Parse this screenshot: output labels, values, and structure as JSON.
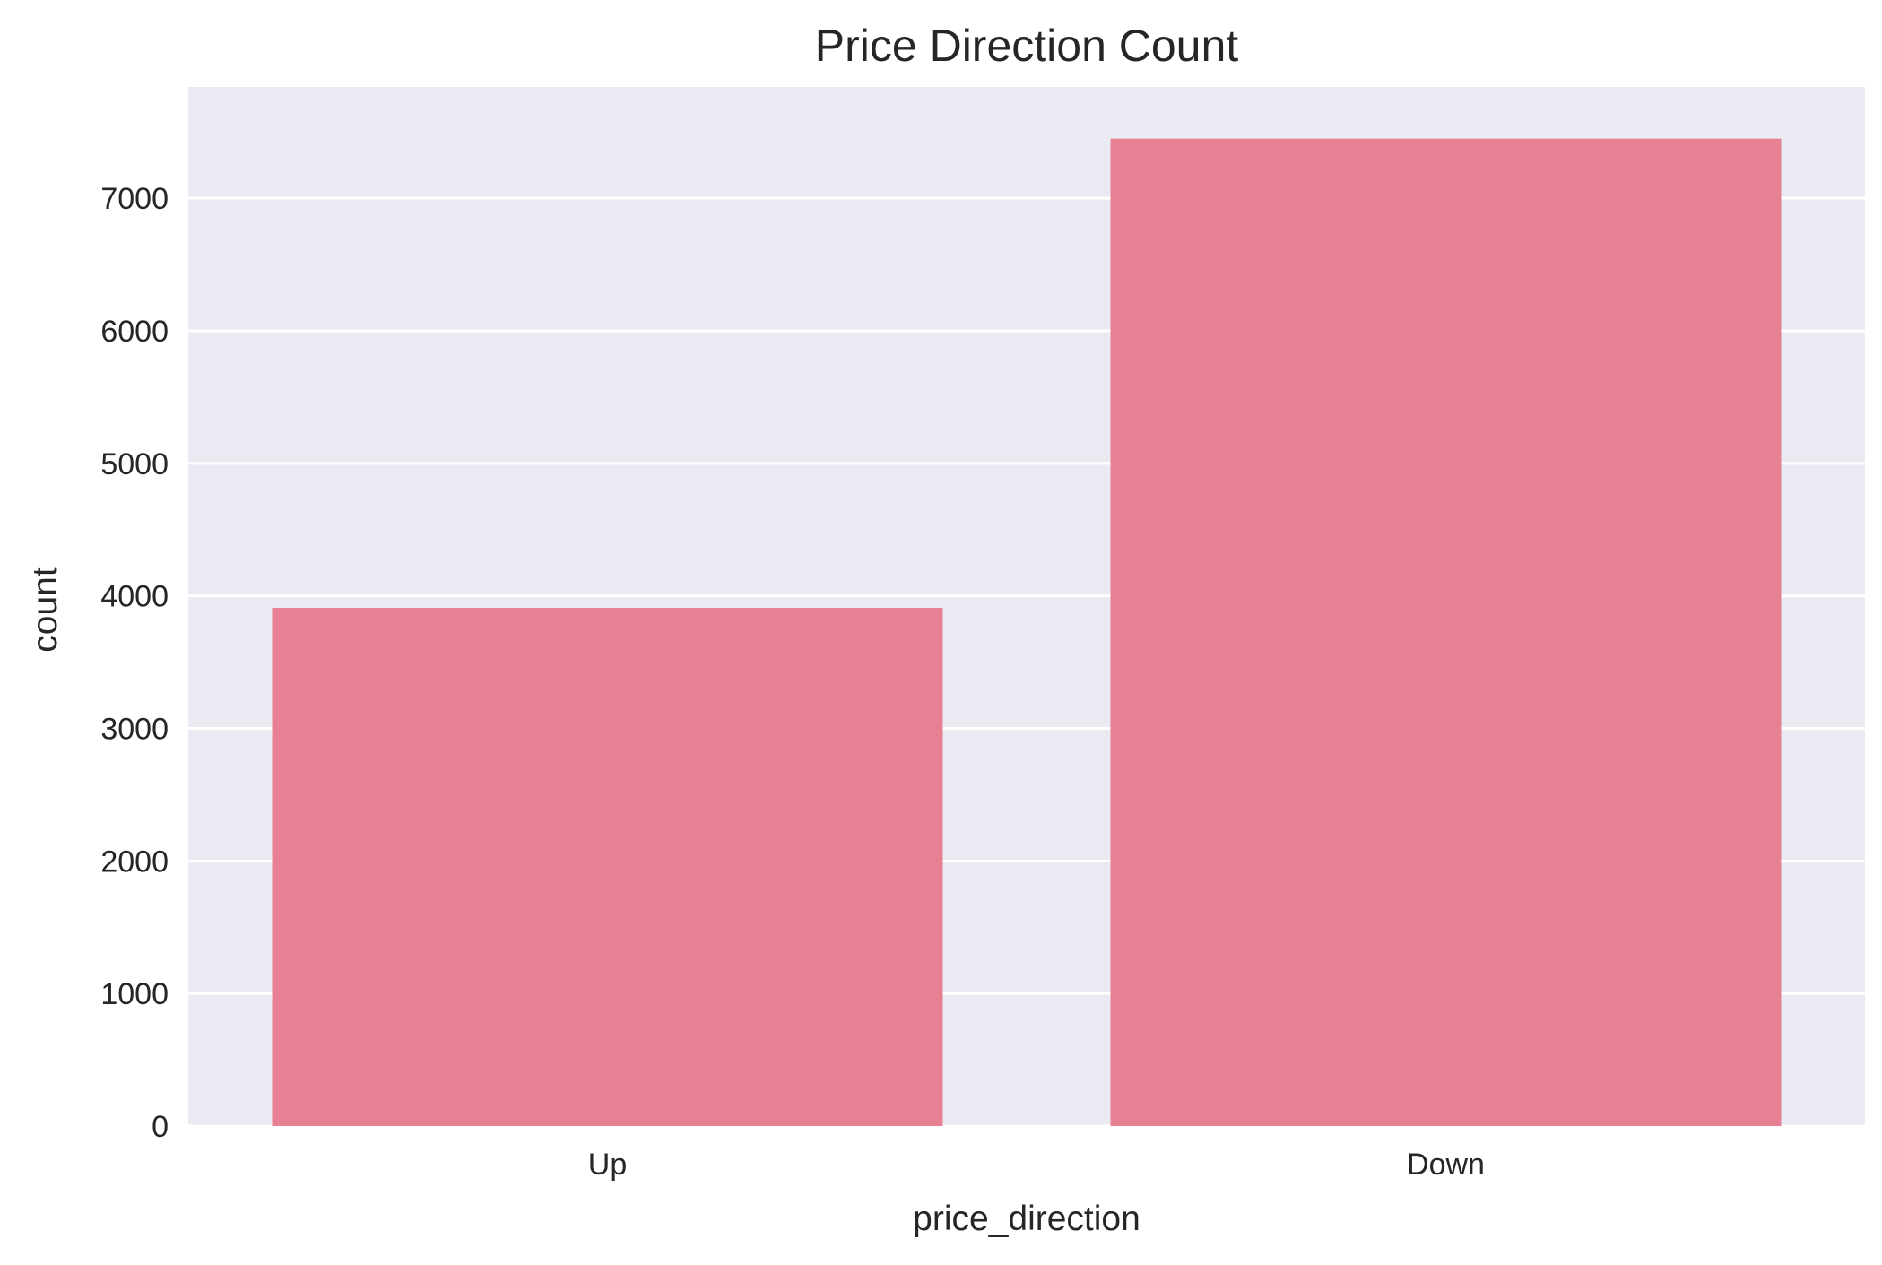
{
  "chart_data": {
    "type": "bar",
    "title": "Price Direction Count",
    "xlabel": "price_direction",
    "ylabel": "count",
    "categories": [
      "Up",
      "Down"
    ],
    "values": [
      3910,
      7450
    ],
    "ylim": [
      0,
      7840
    ],
    "yticks": [
      0,
      1000,
      2000,
      3000,
      4000,
      5000,
      6000,
      7000
    ],
    "ytick_labels": [
      "0",
      "1000",
      "2000",
      "3000",
      "4000",
      "5000",
      "6000",
      "7000"
    ],
    "grid": true,
    "grid_axis": "y",
    "legend": "none",
    "colors": {
      "bar": "#e88093",
      "plot_background": "#eaeaf2",
      "gridline": "#ffffff",
      "text": "#262626",
      "figure_background": "#ffffff"
    }
  }
}
